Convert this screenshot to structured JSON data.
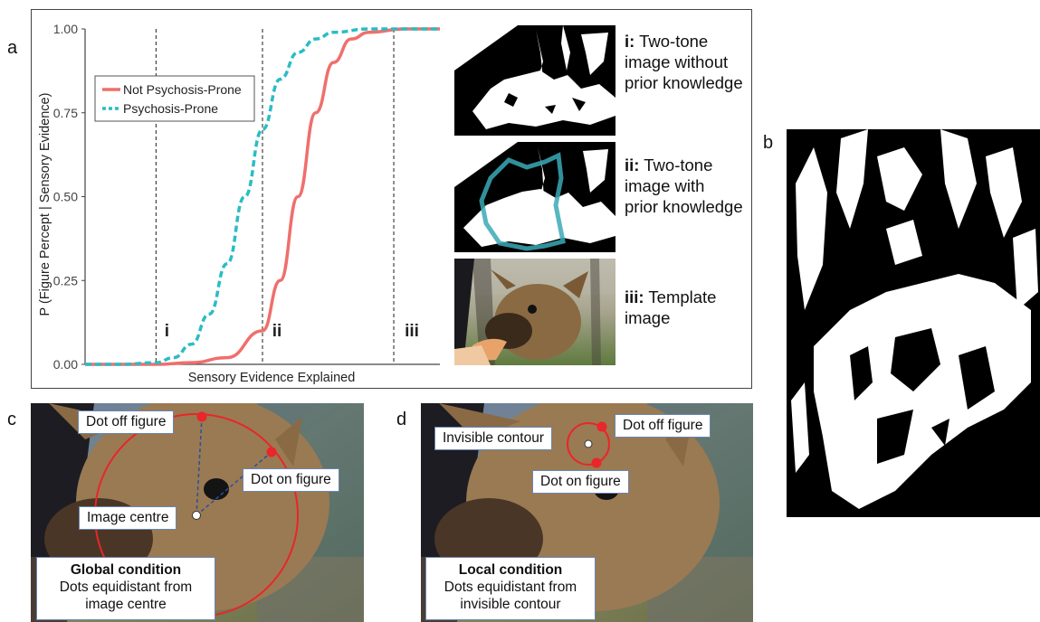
{
  "panel_labels": {
    "a": "a",
    "b": "b",
    "c": "c",
    "d": "d"
  },
  "chart_data": {
    "type": "line",
    "title": "",
    "xlabel": "Sensory Evidence Explained",
    "ylabel": "P (Figure Percept | Sensory Evidence)",
    "ylim": [
      0,
      1
    ],
    "yticks": [
      "0.00",
      "0.25",
      "0.50",
      "0.75",
      "1.00"
    ],
    "ytick_values": [
      0,
      0.25,
      0.5,
      0.75,
      1
    ],
    "xlim": [
      0,
      10
    ],
    "legend_position": "top-left",
    "series": [
      {
        "name": "Not Psychosis-Prone",
        "color": "#ef6f6c",
        "style": "solid",
        "x": [
          0,
          1,
          2,
          3,
          4,
          5,
          5.5,
          6,
          6.5,
          7,
          7.5,
          8,
          9,
          10
        ],
        "y": [
          0,
          0,
          0,
          0.005,
          0.02,
          0.1,
          0.25,
          0.5,
          0.75,
          0.9,
          0.97,
          0.99,
          1,
          1
        ]
      },
      {
        "name": "Psychosis-Prone",
        "color": "#2bbcc4",
        "style": "dashed",
        "x": [
          0,
          1,
          2,
          2.5,
          3,
          3.5,
          4,
          4.5,
          5,
          5.5,
          6,
          6.5,
          7,
          8,
          9,
          10
        ],
        "y": [
          0,
          0,
          0.005,
          0.02,
          0.06,
          0.15,
          0.3,
          0.5,
          0.7,
          0.85,
          0.93,
          0.97,
          0.99,
          1,
          1,
          1
        ]
      }
    ],
    "vlines": [
      {
        "x": 2,
        "label": "i"
      },
      {
        "x": 5,
        "label": "ii"
      },
      {
        "x": 8.7,
        "label": "iii"
      }
    ]
  },
  "descriptions": {
    "i": {
      "bold": "i:",
      "lines": [
        " Two-tone",
        "image without",
        "prior knowledge"
      ]
    },
    "ii": {
      "bold": "ii:",
      "lines": [
        " Two-tone",
        "image with",
        "prior knowledge"
      ]
    },
    "iii": {
      "bold": "iii:",
      "lines": [
        " Template",
        "image"
      ]
    }
  },
  "panel_c": {
    "dot_off": "Dot off figure",
    "dot_on": "Dot on figure",
    "centre": "Image centre",
    "cond_title": "Global condition",
    "cond_line1": "Dots equidistant from",
    "cond_line2": "image centre"
  },
  "panel_d": {
    "invisible": "Invisible contour",
    "dot_off": "Dot off figure",
    "dot_on": "Dot on figure",
    "cond_title": "Local condition",
    "cond_line1": "Dots equidistant from",
    "cond_line2": "invisible contour"
  },
  "colors": {
    "red": "#e8262b",
    "teal": "#2bbcc4",
    "salmon": "#ef6f6c",
    "callout_border": "#6a86b0"
  }
}
